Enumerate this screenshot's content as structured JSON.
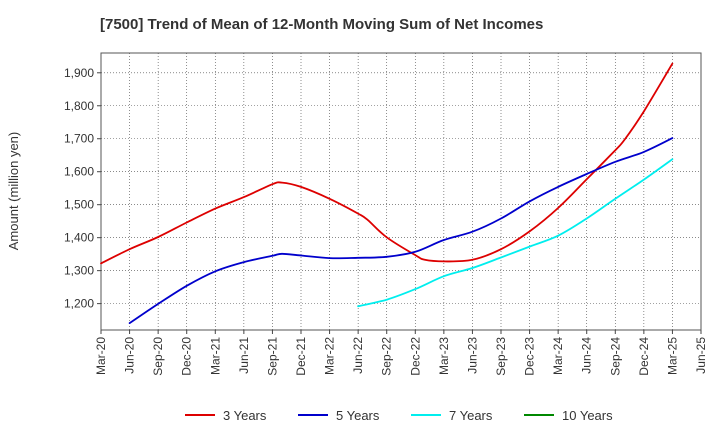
{
  "chart_data": {
    "type": "line",
    "title": "[7500]  Trend of Mean of 12-Month Moving Sum of Net Incomes",
    "ylabel": "Amount (million yen)",
    "xlabel": "",
    "ylim": [
      1120,
      1960
    ],
    "yticks": [
      1200,
      1300,
      1400,
      1500,
      1600,
      1700,
      1800,
      1900
    ],
    "ytick_labels": [
      "1,200",
      "1,300",
      "1,400",
      "1,500",
      "1,600",
      "1,700",
      "1,800",
      "1,900"
    ],
    "xticks": [
      "Mar-20",
      "Jun-20",
      "Sep-20",
      "Dec-20",
      "Mar-21",
      "Jun-21",
      "Sep-21",
      "Dec-21",
      "Mar-22",
      "Jun-22",
      "Sep-22",
      "Dec-22",
      "Mar-23",
      "Jun-23",
      "Sep-23",
      "Dec-23",
      "Mar-24",
      "Jun-24",
      "Sep-24",
      "Dec-24",
      "Mar-25",
      "Jun-25"
    ],
    "grid": true,
    "legend_position": "bottom",
    "series": [
      {
        "name": "3 Years",
        "color": "#dd0000",
        "x": [
          "Mar-20",
          "Jun-20",
          "Sep-20",
          "Dec-20",
          "Mar-21",
          "Jun-21",
          "Sep-21",
          "Oct-21",
          "Dec-21",
          "Mar-22",
          "Jun-22",
          "Jul-22",
          "Sep-22",
          "Dec-22",
          "Jan-23",
          "Mar-23",
          "Jun-23",
          "Sep-23",
          "Dec-23",
          "Mar-24",
          "Jun-24",
          "Sep-24",
          "Oct-24",
          "Dec-24",
          "Mar-25"
        ],
        "values": [
          1322,
          1365,
          1402,
          1446,
          1488,
          1523,
          1562,
          1567,
          1554,
          1518,
          1473,
          1454,
          1401,
          1347,
          1333,
          1328,
          1333,
          1365,
          1419,
          1490,
          1577,
          1665,
          1698,
          1783,
          1928
        ]
      },
      {
        "name": "5 Years",
        "color": "#0000cc",
        "x": [
          "Jun-20",
          "Sep-20",
          "Dec-20",
          "Mar-21",
          "Jun-21",
          "Sep-21",
          "Oct-21",
          "Dec-21",
          "Mar-22",
          "Jun-22",
          "Sep-22",
          "Dec-22",
          "Mar-23",
          "Jun-23",
          "Sep-23",
          "Dec-23",
          "Mar-24",
          "Jun-24",
          "Sep-24",
          "Dec-24",
          "Mar-25"
        ],
        "values": [
          1141,
          1199,
          1254,
          1298,
          1326,
          1345,
          1351,
          1346,
          1338,
          1339,
          1342,
          1357,
          1393,
          1418,
          1458,
          1510,
          1554,
          1593,
          1630,
          1660,
          1702
        ]
      },
      {
        "name": "7 Years",
        "color": "#00eeee",
        "x": [
          "Jun-22",
          "Sep-22",
          "Dec-22",
          "Mar-23",
          "Jun-23",
          "Sep-23",
          "Dec-23",
          "Mar-24",
          "Jun-24",
          "Sep-24",
          "Dec-24",
          "Mar-25"
        ],
        "values": [
          1192,
          1212,
          1244,
          1283,
          1308,
          1340,
          1373,
          1406,
          1458,
          1518,
          1576,
          1638
        ]
      },
      {
        "name": "10 Years",
        "color": "#008800",
        "x": [],
        "values": []
      }
    ]
  }
}
